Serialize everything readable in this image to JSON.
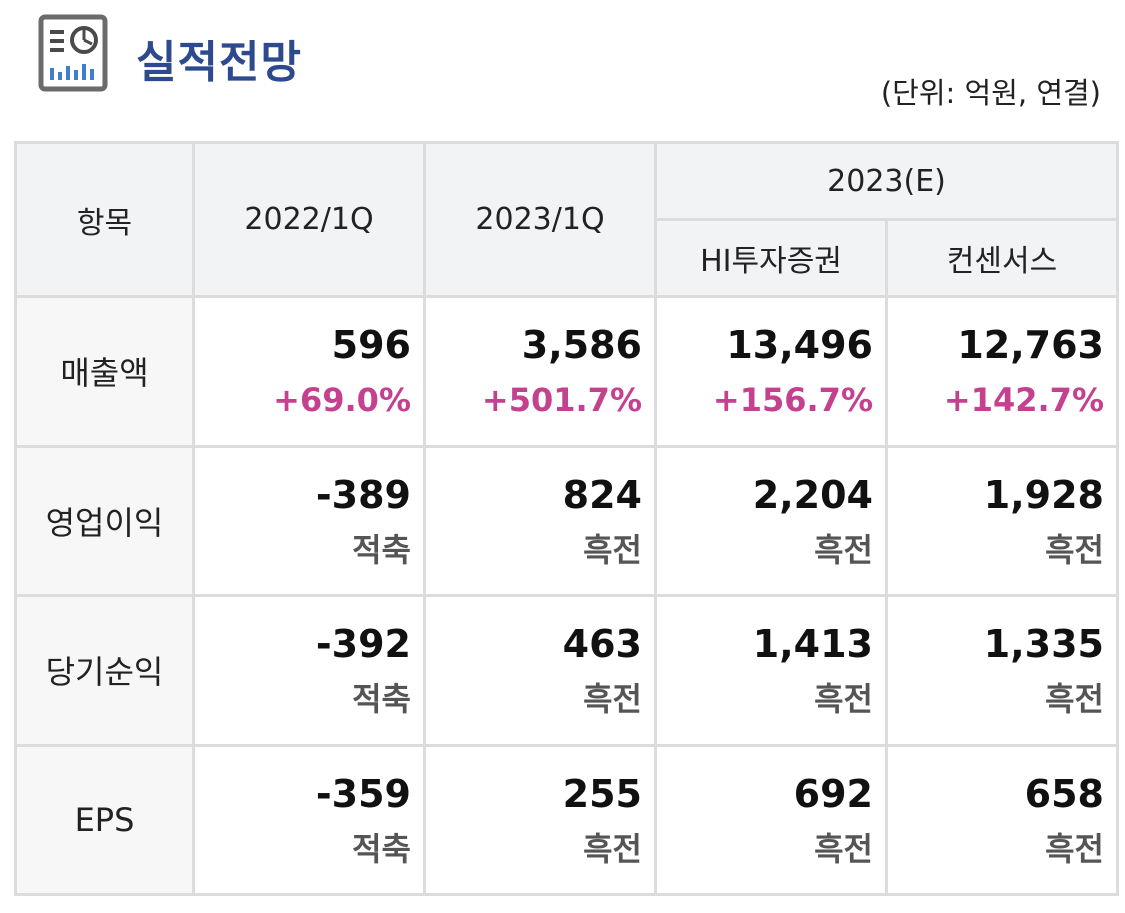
{
  "header": {
    "title": "실적전망",
    "unit_note": "(단위: 억원, 연결)"
  },
  "table": {
    "col_item": "항목",
    "col_2022q1": "2022/1Q",
    "col_2023q1": "2023/1Q",
    "col_2023e": "2023(E)",
    "col_hi": "HI투자증권",
    "col_consensus": "컨센서스",
    "rows": [
      {
        "label": "매출액",
        "cells": [
          {
            "value": "596",
            "change": "+69.0%"
          },
          {
            "value": "3,586",
            "change": "+501.7%"
          },
          {
            "value": "13,496",
            "change": "+156.7%"
          },
          {
            "value": "12,763",
            "change": "+142.7%"
          }
        ]
      },
      {
        "label": "영업이익",
        "cells": [
          {
            "value": "-389",
            "change": "적축"
          },
          {
            "value": "824",
            "change": "흑전"
          },
          {
            "value": "2,204",
            "change": "흑전"
          },
          {
            "value": "1,928",
            "change": "흑전"
          }
        ]
      },
      {
        "label": "당기순익",
        "cells": [
          {
            "value": "-392",
            "change": "적축"
          },
          {
            "value": "463",
            "change": "흑전"
          },
          {
            "value": "1,413",
            "change": "흑전"
          },
          {
            "value": "1,335",
            "change": "흑전"
          }
        ]
      },
      {
        "label": "EPS",
        "cells": [
          {
            "value": "-359",
            "change": "적축"
          },
          {
            "value": "255",
            "change": "흑전"
          },
          {
            "value": "692",
            "change": "흑전"
          },
          {
            "value": "658",
            "change": "흑전"
          }
        ]
      }
    ]
  },
  "colors": {
    "title": "#2e4a8f",
    "positive_change": "#c5408f",
    "text_change": "#555555",
    "header_bg": "#f2f3f5",
    "border": "#dcdcdc"
  },
  "icons": {
    "title_icon": "report-chart-icon"
  }
}
